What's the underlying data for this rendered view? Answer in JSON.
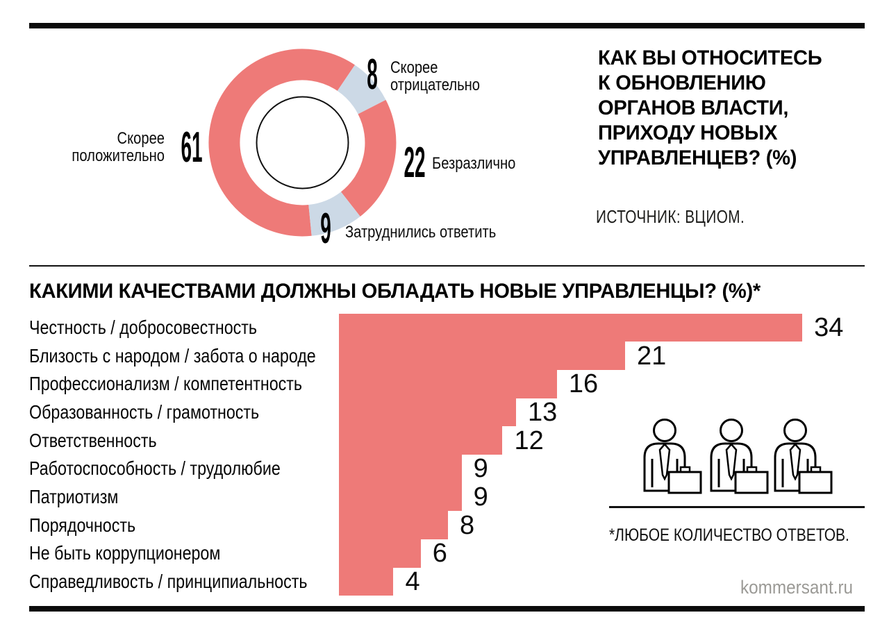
{
  "header": {
    "question_lines": [
      "КАК ВЫ ОТНОСИТЕСЬ",
      "К ОБНОВЛЕНИЮ",
      "ОРГАНОВ ВЛАСТИ,",
      "ПРИХОДУ НОВЫХ",
      "УПРАВЛЕНЦЕВ? (%)"
    ]
  },
  "footer": {
    "site": "kommersant.ru"
  },
  "icons": {
    "decorative": "businessman-with-briefcase-icon",
    "count": 3
  },
  "colors": {
    "accent_red": "#ee7a78",
    "accent_blue": "#ccd9e6",
    "ink": "#0b0b0b",
    "muted_gray": "#9b9a96"
  },
  "chart_data": [
    {
      "type": "pie",
      "donut": true,
      "title": "КАК ВЫ ОТНОСИТЕСЬ К ОБНОВЛЕНИЮ ОРГАНОВ ВЛАСТИ, ПРИХОДУ НОВЫХ УПРАВЛЕНЦЕВ? (%)",
      "source": "ИСТОЧНИК: ВЦИОМ.",
      "labels": [
        "Скорее положительно",
        "Скорее отрицательно",
        "Безразлично",
        "Затруднились ответить"
      ],
      "values": [
        61,
        8,
        22,
        9
      ],
      "colors": [
        "#ee7a78",
        "#ccd9e6",
        "#ee7a78",
        "#ccd9e6"
      ],
      "legend_position": "around",
      "start_angle_deg_clockwise_from_top": 174.4
    },
    {
      "type": "bar",
      "orientation": "horizontal",
      "title": "КАКИМИ КАЧЕСТВАМИ ДОЛЖНЫ ОБЛАДАТЬ НОВЫЕ УПРАВЛЕНЦЫ? (%)*",
      "footnote": "*ЛЮБОЕ КОЛИЧЕСТВО ОТВЕТОВ.",
      "bar_color": "#ee7a78",
      "grid": false,
      "xlim": [
        0,
        38
      ],
      "categories": [
        "Честность / добросовестность",
        "Близость с народом / забота о народе",
        "Профессионализм / компетентность",
        "Образованность / грамотность",
        "Ответственность",
        "Работоспособность / трудолюбие",
        "Патриотизм",
        "Порядочность",
        "Не быть коррупционером",
        "Справедливость / принципиальность"
      ],
      "values": [
        34,
        21,
        16,
        13,
        12,
        9,
        9,
        8,
        6,
        4
      ]
    }
  ]
}
